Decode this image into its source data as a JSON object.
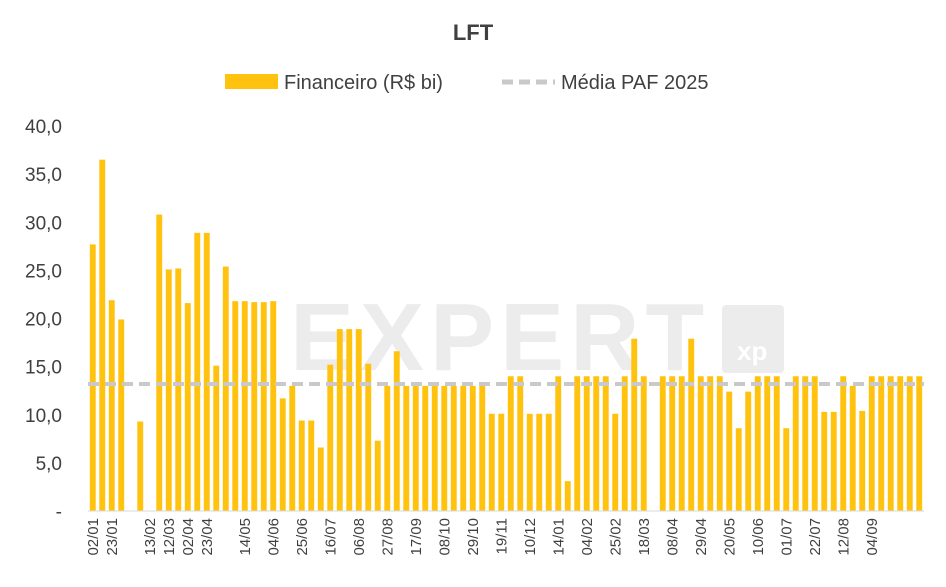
{
  "colors": {
    "bar": "#FFC20E",
    "mean_line": "#C9C9C9",
    "text": "#404040",
    "axis": "#D9D9D9",
    "watermark": "#ECECEC"
  },
  "watermark": {
    "text": "EXPERT",
    "badge": "xp"
  },
  "chart_data": {
    "type": "bar",
    "title": "LFT",
    "legend_position": "top",
    "grid": false,
    "ylim": [
      0,
      40
    ],
    "yticks": [
      "-",
      "5,0",
      "10,0",
      "15,0",
      "20,0",
      "25,0",
      "30,0",
      "35,0",
      "40,0"
    ],
    "ytick_values": [
      0,
      5,
      10,
      15,
      20,
      25,
      30,
      35,
      40
    ],
    "xtick_labels": [
      "02/01",
      "23/01",
      "13/02",
      "12/03",
      "02/04",
      "23/04",
      "14/05",
      "04/06",
      "25/06",
      "16/07",
      "06/08",
      "27/08",
      "17/09",
      "08/10",
      "29/10",
      "19/11",
      "10/12",
      "14/01",
      "04/02",
      "25/02",
      "18/03",
      "08/04",
      "29/04",
      "20/05",
      "10/06",
      "01/07",
      "22/07",
      "12/08",
      "04/09"
    ],
    "xtick_slots": [
      0,
      2,
      6,
      8,
      10,
      12,
      16,
      19,
      22,
      25,
      28,
      31,
      34,
      37,
      40,
      43,
      46,
      49,
      52,
      55,
      58,
      61,
      64,
      67,
      70,
      73,
      76,
      79,
      82
    ],
    "series": [
      {
        "name": "Financeiro (R$ bi)",
        "type": "bar",
        "values": [
          27.7,
          36.5,
          21.9,
          19.9,
          0,
          9.3,
          0,
          30.8,
          25.1,
          25.2,
          21.6,
          28.9,
          28.9,
          15.1,
          25.4,
          21.8,
          21.8,
          21.7,
          21.7,
          21.8,
          11.7,
          13.0,
          9.4,
          9.4,
          6.6,
          15.2,
          18.9,
          18.9,
          18.9,
          15.3,
          7.3,
          13.0,
          16.6,
          13.0,
          13.0,
          13.0,
          13.0,
          13.0,
          13.0,
          13.0,
          13.0,
          13.0,
          10.1,
          10.1,
          14.0,
          14.0,
          10.1,
          10.1,
          10.1,
          14.0,
          3.1,
          14.0,
          14.0,
          14.0,
          14.0,
          10.1,
          14.0,
          17.9,
          14.0,
          0,
          14.0,
          14.0,
          14.0,
          17.9,
          14.0,
          14.0,
          14.0,
          12.4,
          8.6,
          12.4,
          14.0,
          14.0,
          14.0,
          8.6,
          14.0,
          14.0,
          14.0,
          10.3,
          10.3,
          14.0,
          13.0,
          10.4,
          14.0,
          14.0,
          14.0,
          14.0,
          14.0,
          14.0
        ]
      },
      {
        "name": "Média PAF 2025",
        "type": "line",
        "style": "dashed",
        "value": 13.2
      }
    ]
  }
}
